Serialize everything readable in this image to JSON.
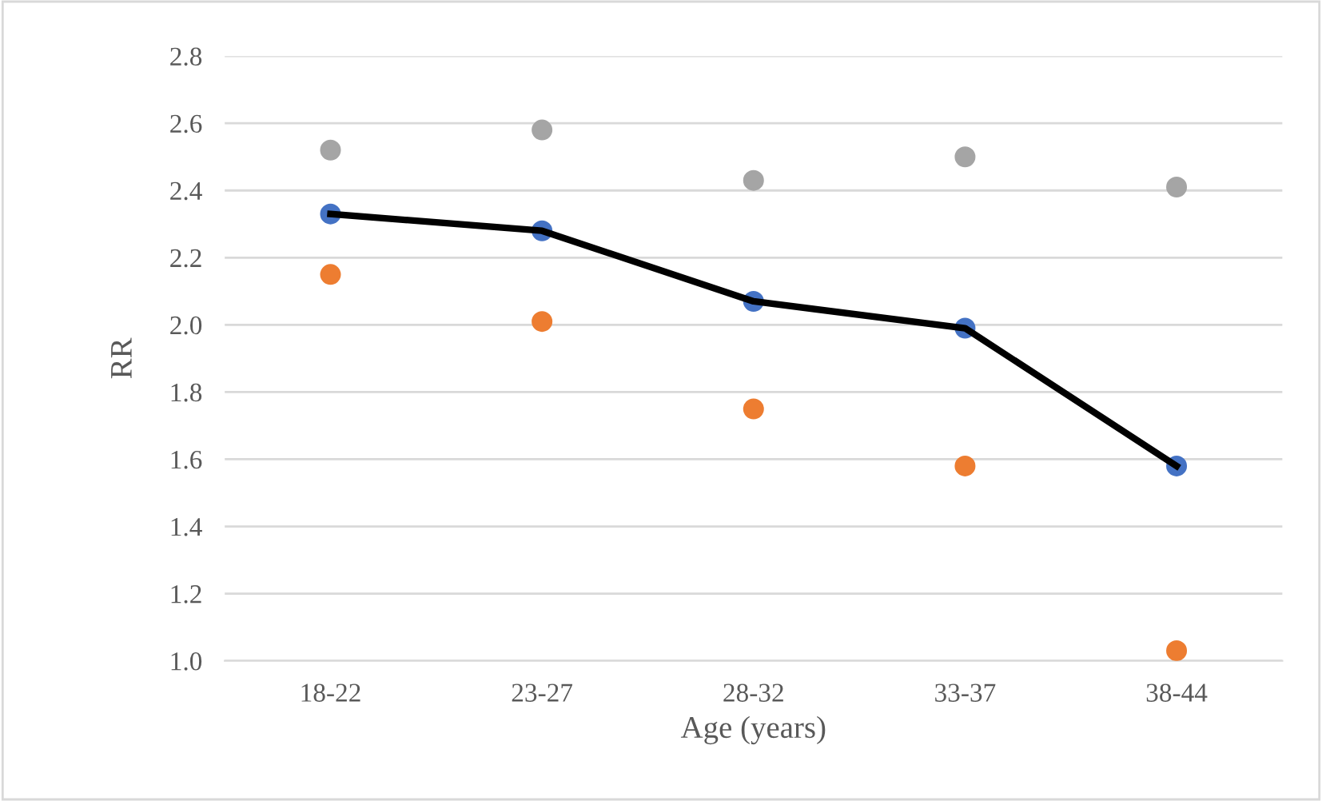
{
  "chart_data": {
    "type": "scatter",
    "xlabel": "Age (years)",
    "ylabel": "RR",
    "categories": [
      "18-22",
      "23-27",
      "28-32",
      "33-37",
      "38-44"
    ],
    "series": [
      {
        "type": "line",
        "color": "#000000",
        "marker": "none",
        "values": [
          2.33,
          2.28,
          2.07,
          1.99,
          1.58
        ]
      },
      {
        "type": "scatter",
        "color": "#4472c4",
        "values": [
          2.33,
          2.28,
          2.07,
          1.99,
          1.58
        ]
      },
      {
        "type": "scatter",
        "color": "#ed7d31",
        "values": [
          2.15,
          2.01,
          1.75,
          1.58,
          1.03
        ]
      },
      {
        "type": "scatter",
        "color": "#a5a5a5",
        "values": [
          2.52,
          2.58,
          2.43,
          2.5,
          2.41
        ]
      }
    ],
    "ylim": [
      1.0,
      2.8
    ],
    "yticks": [
      {
        "value": 1.0,
        "label": "1.0"
      },
      {
        "value": 1.2,
        "label": "1.2"
      },
      {
        "value": 1.4,
        "label": "1.4"
      },
      {
        "value": 1.6,
        "label": "1.6"
      },
      {
        "value": 1.8,
        "label": "1.8"
      },
      {
        "value": 2.0,
        "label": "2.0"
      },
      {
        "value": 2.2,
        "label": "2.2"
      },
      {
        "value": 2.4,
        "label": "2.4"
      },
      {
        "value": 2.6,
        "label": "2.6"
      },
      {
        "value": 2.8,
        "label": "2.8"
      }
    ],
    "grid": "y",
    "legend": false,
    "marker": "circle"
  }
}
